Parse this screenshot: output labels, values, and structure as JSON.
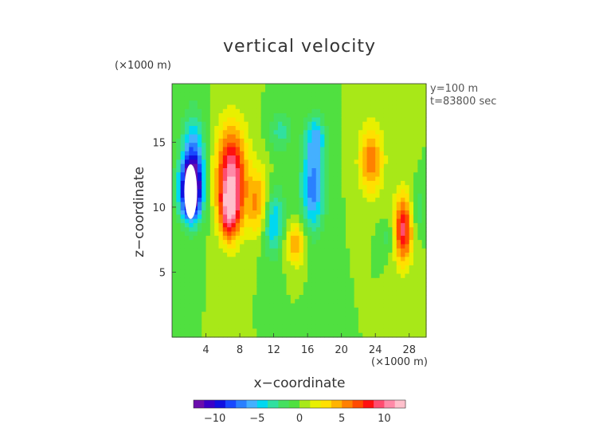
{
  "chart_data": {
    "type": "heatmap",
    "title": "vertical velocity",
    "xlabel": "x−coordinate",
    "ylabel": "z−coordinate",
    "x_unit": "(×1000 m)",
    "y_unit": "(×1000 m)",
    "annotations": [
      "y=100 m",
      "t=83800 sec"
    ],
    "xlim": [
      0,
      30
    ],
    "ylim": [
      0,
      19.5
    ],
    "x_ticks": [
      4,
      8,
      12,
      16,
      20,
      24,
      28
    ],
    "x_tick_labels": [
      "4",
      "8",
      "12",
      "16",
      "20",
      "24",
      "28"
    ],
    "y_ticks": [
      5,
      10,
      15
    ],
    "y_tick_labels": [
      "5",
      "10",
      "15"
    ],
    "colorbar": {
      "range": [
        -12.5,
        12.5
      ],
      "ticks": [
        -10,
        -5,
        0,
        5,
        10
      ],
      "tick_labels": [
        "−10",
        "−5",
        "0",
        "5",
        "10"
      ],
      "colors": [
        "#6a0dad",
        "#3a00c8",
        "#1010e0",
        "#1848ff",
        "#2a80ff",
        "#44b0ff",
        "#00d8f0",
        "#30e0a0",
        "#44e060",
        "#50e040",
        "#a8e818",
        "#e8f000",
        "#ffe000",
        "#ffb400",
        "#ff8000",
        "#ff4a00",
        "#ff1010",
        "#ff4c70",
        "#ff8aa8",
        "#ffc0cc"
      ]
    },
    "features": [
      {
        "x": 2.2,
        "z": 11.2,
        "peak": -12.5
      },
      {
        "x": 2.5,
        "z": 13.5,
        "peak": -7
      },
      {
        "x": 7.0,
        "z": 12.6,
        "peak": 10
      },
      {
        "x": 6.8,
        "z": 9.6,
        "peak": 8
      },
      {
        "x": 10.3,
        "z": 10.2,
        "peak": 6
      },
      {
        "x": 11.8,
        "z": 9.0,
        "peak": -6
      },
      {
        "x": 12.8,
        "z": 15.8,
        "peak": -3
      },
      {
        "x": 14.6,
        "z": 7.2,
        "peak": 5
      },
      {
        "x": 16.6,
        "z": 11.6,
        "peak": -7
      },
      {
        "x": 17.0,
        "z": 15.5,
        "peak": -4
      },
      {
        "x": 23.5,
        "z": 13.6,
        "peak": 6
      },
      {
        "x": 27.3,
        "z": 8.3,
        "peak": 9
      },
      {
        "x": 25.5,
        "z": 7.6,
        "peak": -2
      },
      {
        "x": 29.0,
        "z": 9.8,
        "peak": -2.5
      }
    ]
  }
}
